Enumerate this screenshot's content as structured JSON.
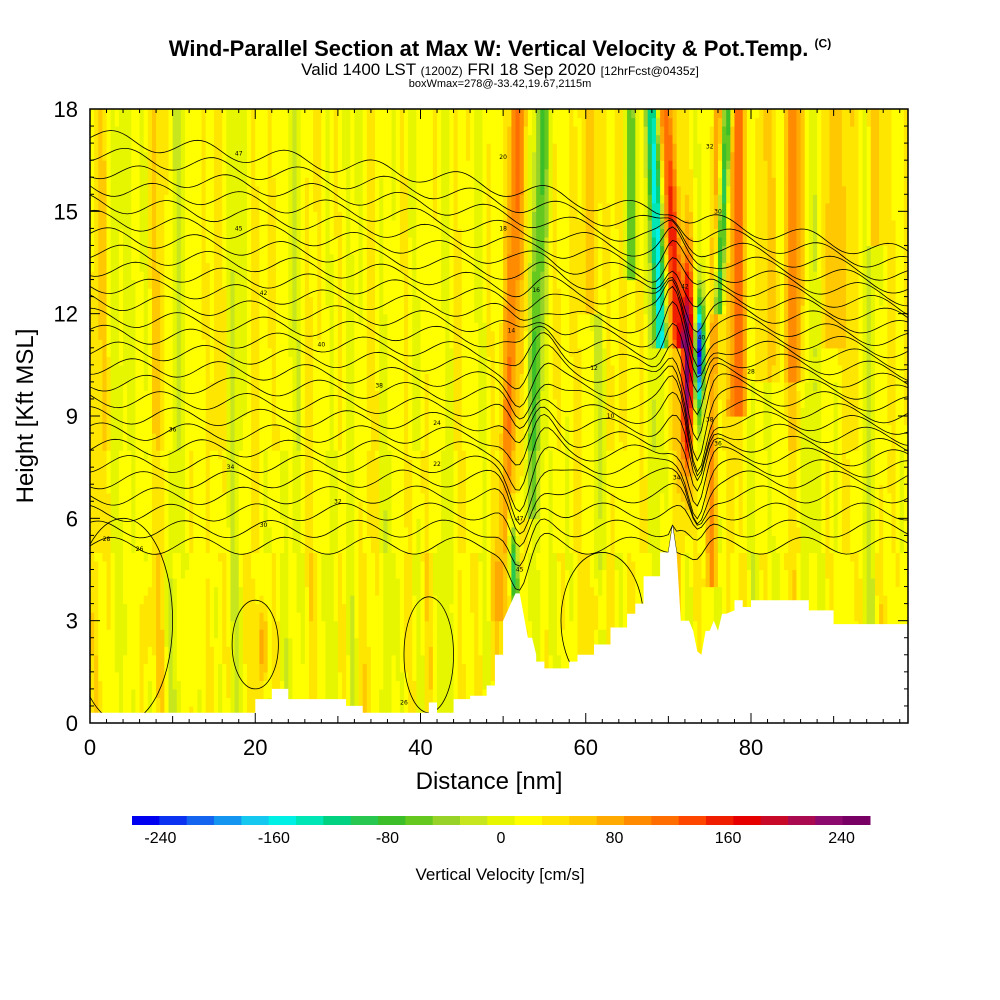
{
  "header": {
    "title_main": "Wind-Parallel Section at Max W: Vertical Velocity & Pot.Temp.",
    "title_copy": "(C)",
    "sub_valid": "Valid 1400 LST",
    "sub_z": "(1200Z)",
    "sub_date": "FRI 18 Sep 2020",
    "sub_fcst": "[12hrFcst@0435z]",
    "box_info": "boxWmax=278@-33.42,19.67,2115m"
  },
  "chart_data": {
    "type": "heatmap",
    "title": "Wind-Parallel Section at Max W: Vertical Velocity & Pot.Temp.",
    "xlabel": "Distance [nm]",
    "ylabel": "Height [Kft MSL]",
    "xlim": [
      0,
      99
    ],
    "ylim": [
      0,
      18
    ],
    "xticks": [
      0,
      20,
      40,
      60,
      80
    ],
    "xtick_labels": [
      "0",
      "20",
      "40",
      "60",
      "80"
    ],
    "yticks": [
      0,
      3,
      6,
      9,
      12,
      15,
      18
    ],
    "ytick_labels": [
      "0",
      "3",
      "6",
      "9",
      "12",
      "15",
      "18"
    ],
    "colorbar": {
      "title": "Vertical Velocity [cm/s]",
      "range": [
        -260,
        260
      ],
      "tick_values": [
        -240,
        -160,
        -80,
        0,
        80,
        160,
        240
      ],
      "tick_labels": [
        "-240",
        "-160",
        "-80",
        "0",
        "80",
        "160",
        "240"
      ],
      "colors": [
        "#0000f0",
        "#0a32f0",
        "#1464f0",
        "#1496f0",
        "#14c8f0",
        "#00f0e6",
        "#00e6b4",
        "#00d282",
        "#28c850",
        "#3cbe28",
        "#64c81e",
        "#96d228",
        "#c8e61e",
        "#e6f500",
        "#ffff00",
        "#ffe600",
        "#ffc800",
        "#ffaa00",
        "#ff8c00",
        "#ff6e00",
        "#ff4600",
        "#f01e00",
        "#e60000",
        "#c80a28",
        "#aa0a50",
        "#8c0a6e",
        "#780064"
      ]
    },
    "terrain_profile": {
      "x": [
        0,
        20,
        20,
        22,
        22,
        24,
        24,
        31,
        31,
        33,
        33,
        41,
        41,
        42,
        42,
        44,
        44,
        46,
        46,
        48,
        48,
        49,
        49,
        50,
        50,
        51.5,
        52,
        53,
        53.5,
        54,
        54,
        55,
        55,
        58,
        58,
        59,
        59,
        61,
        61,
        63,
        63,
        65,
        65,
        66,
        66,
        67,
        67,
        69,
        69,
        70,
        70.5,
        71,
        71.5,
        72.5,
        73,
        73.5,
        74,
        74.5,
        75,
        75.5,
        76,
        76.5,
        77,
        78,
        78,
        79,
        79,
        80,
        80,
        87,
        87,
        90,
        90,
        99
      ],
      "height": [
        0.3,
        0.3,
        0.7,
        0.7,
        1.0,
        1.0,
        0.7,
        0.7,
        0.5,
        0.5,
        0.3,
        0.3,
        0.6,
        0.6,
        0.3,
        0.3,
        0.7,
        0.7,
        0.8,
        0.8,
        1.1,
        1.1,
        2.0,
        2.0,
        3.0,
        3.8,
        3.8,
        2.5,
        2.5,
        2.0,
        1.8,
        1.8,
        1.6,
        1.6,
        1.8,
        1.8,
        2.0,
        2.0,
        2.3,
        2.3,
        2.8,
        2.8,
        3.2,
        3.2,
        3.5,
        3.5,
        4.3,
        4.3,
        5.0,
        5.0,
        5.8,
        5.0,
        3.0,
        3.0,
        2.7,
        2.1,
        2.0,
        2.7,
        2.7,
        3.0,
        2.7,
        3.2,
        3.2,
        3.3,
        3.6,
        3.6,
        3.4,
        3.4,
        3.6,
        3.6,
        3.3,
        3.3,
        2.9,
        2.9
      ]
    },
    "contours": {
      "field": "Potential Temperature",
      "labels": [
        "47",
        "45",
        "42",
        "40",
        "38",
        "36",
        "34",
        "32",
        "30",
        "28",
        "26",
        "24",
        "22",
        "20",
        "18",
        "16",
        "14",
        "12",
        "10"
      ]
    }
  }
}
